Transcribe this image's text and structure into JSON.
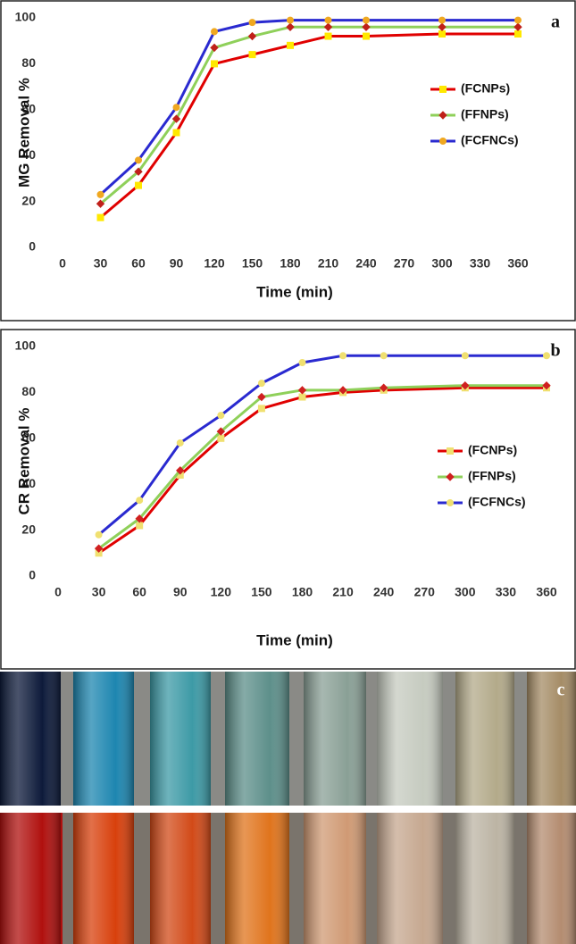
{
  "chart_data": [
    {
      "type": "line",
      "label": "a",
      "ylabel": "MG Removal %",
      "xlabel": "Time (min)",
      "x": [
        30,
        60,
        90,
        120,
        150,
        180,
        210,
        240,
        300,
        360
      ],
      "xlim": [
        0,
        360
      ],
      "xticks": [
        0,
        30,
        60,
        90,
        120,
        150,
        180,
        210,
        240,
        270,
        300,
        330,
        360
      ],
      "ylim": [
        0,
        100
      ],
      "yticks": [
        0,
        20,
        40,
        60,
        80,
        100
      ],
      "legend": "right",
      "series": [
        {
          "name": "(FCNPs)",
          "color": "#e00000",
          "marker": "square",
          "marker_color": "#ffe800",
          "values": [
            13,
            27,
            50,
            80,
            84,
            88,
            92,
            92,
            93,
            93
          ]
        },
        {
          "name": "(FFNPs)",
          "color": "#8fd05a",
          "marker": "diamond",
          "marker_color": "#c0201a",
          "values": [
            19,
            33,
            56,
            87,
            92,
            96,
            96,
            96,
            96,
            96
          ]
        },
        {
          "name": "(FCFNCs)",
          "color": "#2a2ad0",
          "marker": "circle",
          "marker_color": "#f0a820",
          "values": [
            23,
            38,
            61,
            94,
            98,
            99,
            99,
            99,
            99,
            99
          ]
        }
      ]
    },
    {
      "type": "line",
      "label": "b",
      "ylabel": "CR Removal %",
      "xlabel": "Time (min)",
      "x": [
        30,
        60,
        90,
        120,
        150,
        180,
        210,
        240,
        300,
        360
      ],
      "xlim": [
        0,
        360
      ],
      "xticks": [
        0,
        30,
        60,
        90,
        120,
        150,
        180,
        210,
        240,
        270,
        300,
        330,
        360
      ],
      "ylim": [
        0,
        100
      ],
      "yticks": [
        0,
        20,
        40,
        60,
        80,
        100
      ],
      "legend": "right",
      "series": [
        {
          "name": "(FCNPs)",
          "color": "#e00000",
          "marker": "square",
          "marker_color": "#f0e070",
          "values": [
            10,
            22,
            44,
            60,
            73,
            78,
            80,
            81,
            82,
            82
          ]
        },
        {
          "name": "(FFNPs)",
          "color": "#8fd05a",
          "marker": "diamond",
          "marker_color": "#d02020",
          "values": [
            12,
            25,
            46,
            63,
            78,
            81,
            81,
            82,
            83,
            83
          ]
        },
        {
          "name": "(FCFNCs)",
          "color": "#2a2ad0",
          "marker": "circle",
          "marker_color": "#f0e070",
          "values": [
            18,
            33,
            58,
            70,
            84,
            93,
            96,
            96,
            96,
            96
          ]
        }
      ]
    }
  ],
  "photo": {
    "label": "c"
  }
}
